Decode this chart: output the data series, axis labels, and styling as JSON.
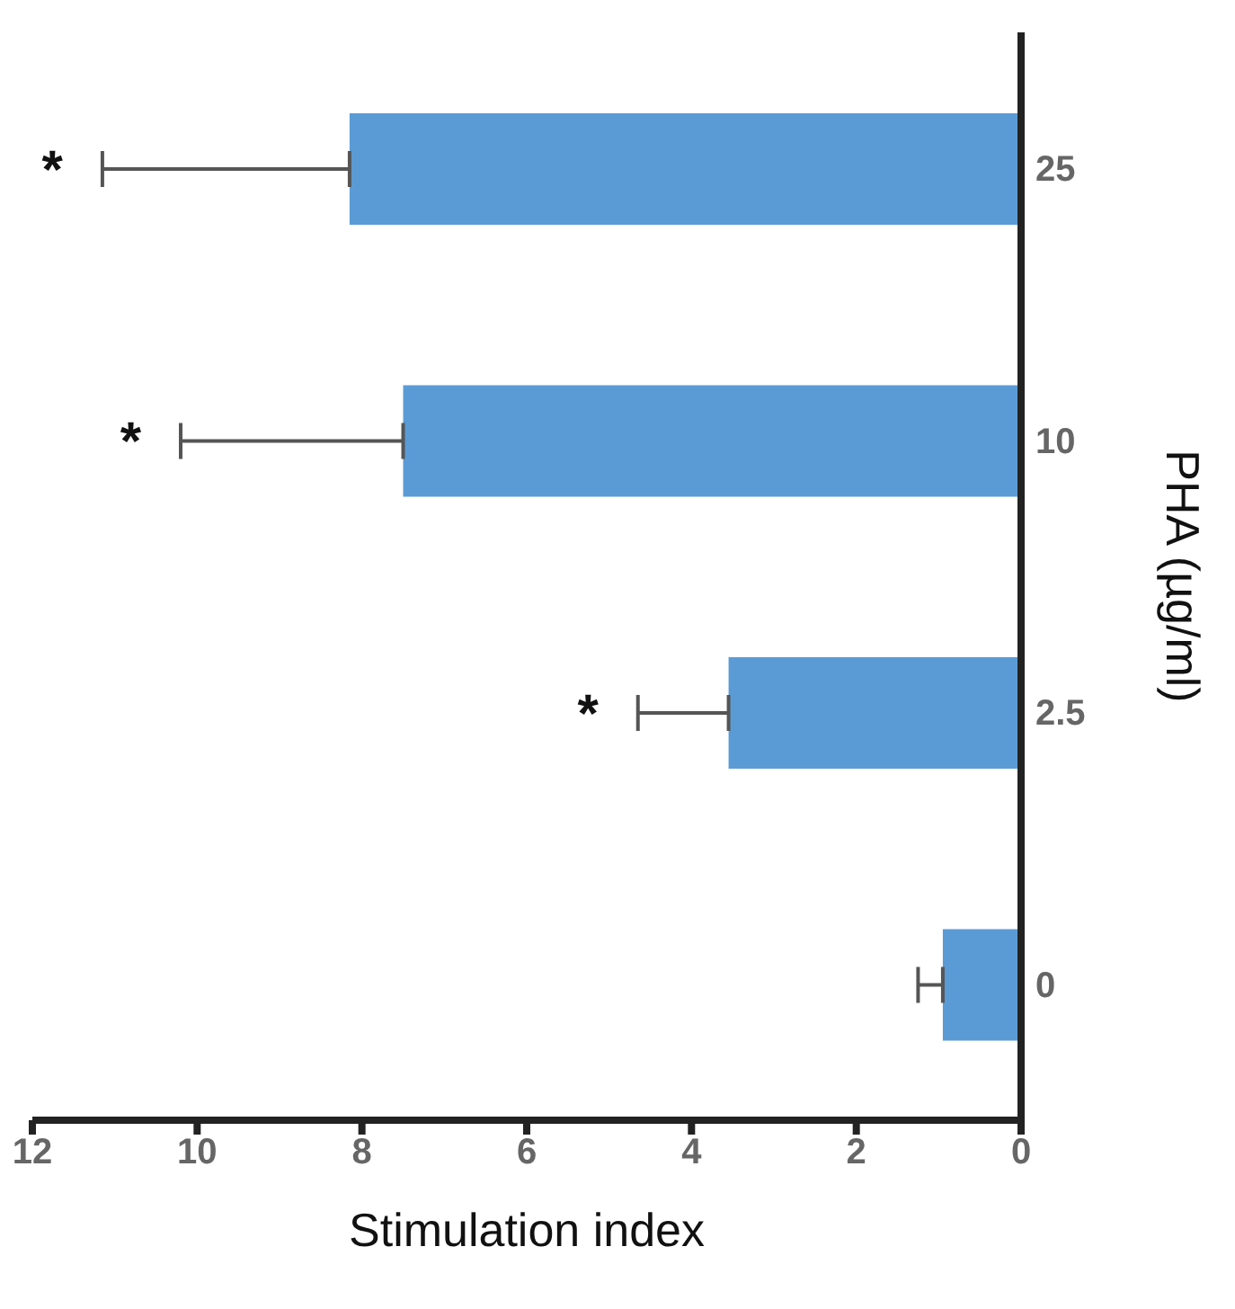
{
  "chart_data": {
    "type": "bar",
    "orientation": "horizontal",
    "xlabel": "Stimulation index",
    "ylabel": "PHA (µg/ml)",
    "categories": [
      "25",
      "10",
      "2.5",
      "0"
    ],
    "values": [
      8.15,
      7.5,
      3.55,
      0.95
    ],
    "errors": [
      3.0,
      2.7,
      1.1,
      0.3
    ],
    "color": "#5b9bd5",
    "xlim": [
      12,
      0
    ],
    "xticks": [
      0,
      2,
      4,
      6,
      8,
      10,
      12
    ],
    "annotations": [
      "*",
      "*",
      "*"
    ]
  }
}
